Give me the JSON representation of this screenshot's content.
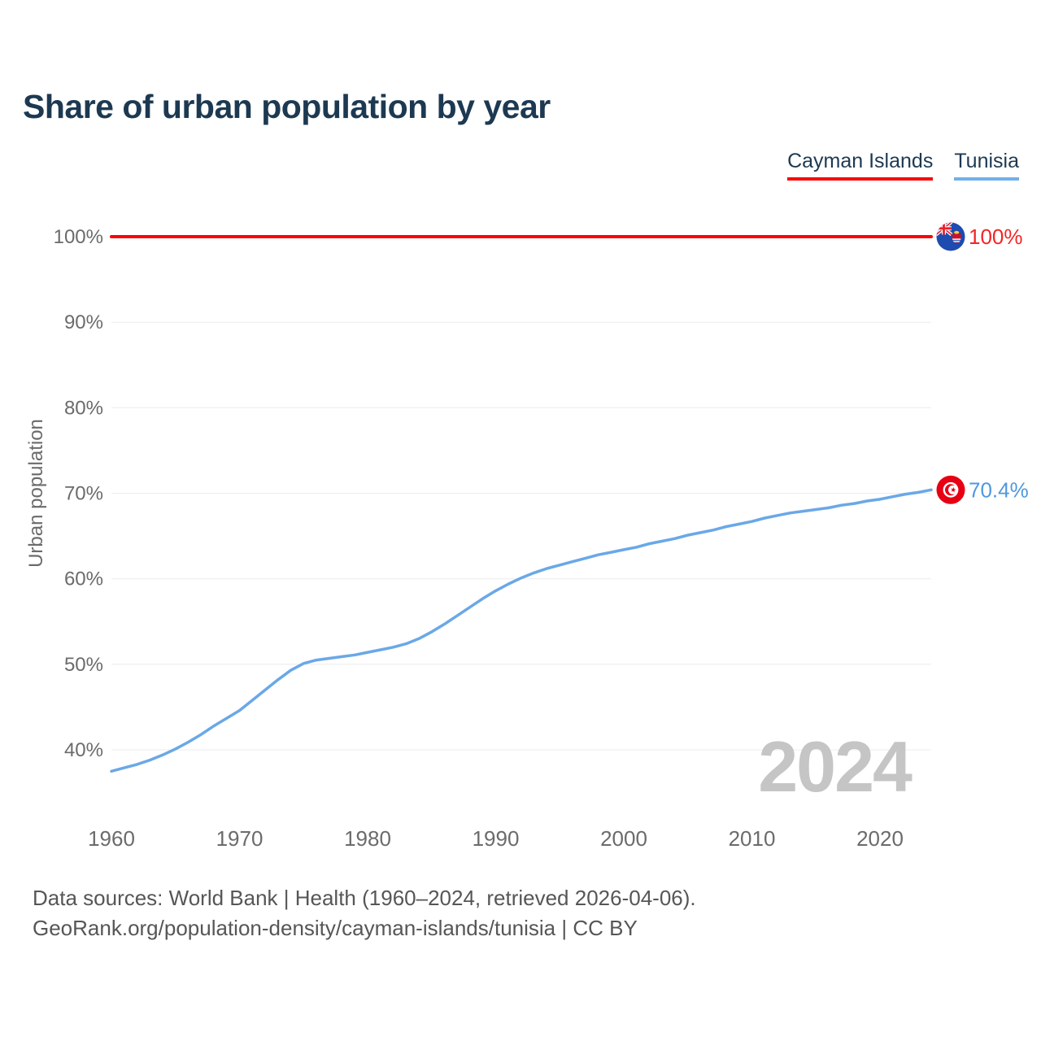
{
  "header": {
    "title": "Share of urban population by year"
  },
  "legend": [
    {
      "label": "Cayman Islands",
      "color": "#fa0505"
    },
    {
      "label": "Tunisia",
      "color": "#6fb0e8"
    }
  ],
  "chart_data": {
    "type": "line",
    "title": "Share of urban population by year",
    "xlabel": "",
    "ylabel": "Urban population",
    "xlim": [
      1960,
      2024
    ],
    "ylim": [
      40,
      100
    ],
    "grid": true,
    "legend_position": "top-right",
    "watermark": "2024",
    "y_ticks": [
      40,
      50,
      60,
      70,
      80,
      90,
      100
    ],
    "y_tick_suffix": "%",
    "x_ticks": [
      1960,
      1970,
      1980,
      1990,
      2000,
      2010,
      2020
    ],
    "x": [
      1960,
      1961,
      1962,
      1963,
      1964,
      1965,
      1966,
      1967,
      1968,
      1969,
      1970,
      1971,
      1972,
      1973,
      1974,
      1975,
      1976,
      1977,
      1978,
      1979,
      1980,
      1981,
      1982,
      1983,
      1984,
      1985,
      1986,
      1987,
      1988,
      1989,
      1990,
      1991,
      1992,
      1993,
      1994,
      1995,
      1996,
      1997,
      1998,
      1999,
      2000,
      2001,
      2002,
      2003,
      2004,
      2005,
      2006,
      2007,
      2008,
      2009,
      2010,
      2011,
      2012,
      2013,
      2014,
      2015,
      2016,
      2017,
      2018,
      2019,
      2020,
      2021,
      2022,
      2023,
      2024
    ],
    "series": [
      {
        "name": "Cayman Islands",
        "slug": "cayman-islands",
        "color": "#fa0505",
        "label_color": "#f42525",
        "end_label": "100%",
        "flag": "flag-cayman",
        "values": [
          100,
          100,
          100,
          100,
          100,
          100,
          100,
          100,
          100,
          100,
          100,
          100,
          100,
          100,
          100,
          100,
          100,
          100,
          100,
          100,
          100,
          100,
          100,
          100,
          100,
          100,
          100,
          100,
          100,
          100,
          100,
          100,
          100,
          100,
          100,
          100,
          100,
          100,
          100,
          100,
          100,
          100,
          100,
          100,
          100,
          100,
          100,
          100,
          100,
          100,
          100,
          100,
          100,
          100,
          100,
          100,
          100,
          100,
          100,
          100,
          100,
          100,
          100,
          100,
          100
        ]
      },
      {
        "name": "Tunisia",
        "slug": "tunisia",
        "color": "#6aa8e7",
        "label_color": "#4f97e0",
        "end_label": "70.4%",
        "flag": "flag-tunisia",
        "values": [
          37.5,
          37.9,
          38.3,
          38.8,
          39.4,
          40.1,
          40.9,
          41.8,
          42.8,
          43.7,
          44.6,
          45.8,
          47.0,
          48.2,
          49.3,
          50.1,
          50.5,
          50.7,
          50.9,
          51.1,
          51.4,
          51.7,
          52.0,
          52.4,
          53.0,
          53.8,
          54.7,
          55.7,
          56.7,
          57.7,
          58.6,
          59.4,
          60.1,
          60.7,
          61.2,
          61.6,
          62.0,
          62.4,
          62.8,
          63.1,
          63.4,
          63.7,
          64.1,
          64.4,
          64.7,
          65.1,
          65.4,
          65.7,
          66.1,
          66.4,
          66.7,
          67.1,
          67.4,
          67.7,
          67.9,
          68.1,
          68.3,
          68.6,
          68.8,
          69.1,
          69.3,
          69.6,
          69.9,
          70.1,
          70.4
        ]
      }
    ]
  },
  "footer": {
    "line1": "Data sources: World Bank | Health (1960–2024, retrieved 2026-04-06).",
    "line2": "GeoRank.org/population-density/cayman-islands/tunisia | CC BY"
  }
}
